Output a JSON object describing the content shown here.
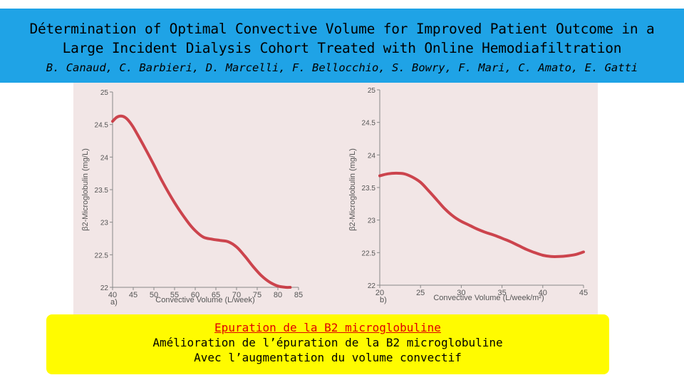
{
  "header": {
    "title_line1": "Détermination of Optimal Convective Volume for Improved Patient Outcome in a",
    "title_line2": "Large Incident Dialysis Cohort Treated with Online Hemodiafiltration",
    "authors": "B. Canaud, C. Barbieri, D. Marcelli, F. Bellocchio, S. Bowry, F. Mari, C. Amato, E. Gatti"
  },
  "caption": {
    "heading": "Epuration de la B2 microglobuline",
    "line1": "Amélioration de l’épuration de la B2 microglobuline",
    "line2": "Avec l’augmentation du volume convectif"
  },
  "colors": {
    "banner": "#1fa3e6",
    "caption_bg": "#fffb00",
    "curve": "#c8323c",
    "heading_red": "#e00000"
  },
  "chart_data": [
    {
      "type": "line",
      "panel": "a)",
      "xlabel": "Convective Volume (L/week)",
      "ylabel": "β2-Microglobulin (mg/L)",
      "xlim": [
        40,
        85
      ],
      "ylim": [
        22,
        25
      ],
      "xticks": [
        "40",
        "45",
        "50",
        "55",
        "60",
        "65",
        "70",
        "75",
        "80",
        "85"
      ],
      "yticks": [
        "22",
        "22.5",
        "23",
        "23.5",
        "24",
        "24.5",
        "25"
      ],
      "series": [
        {
          "x": [
            40,
            41,
            42,
            43,
            44,
            45,
            46,
            48,
            50,
            52,
            55,
            58,
            60,
            62,
            64,
            66,
            68,
            70,
            72,
            74,
            76,
            78,
            80,
            82,
            83
          ],
          "values": [
            24.55,
            24.61,
            24.63,
            24.61,
            24.55,
            24.46,
            24.35,
            24.12,
            23.88,
            23.63,
            23.3,
            23.02,
            22.87,
            22.77,
            22.74,
            22.72,
            22.7,
            22.62,
            22.48,
            22.32,
            22.18,
            22.08,
            22.02,
            22.0,
            22.0
          ]
        }
      ]
    },
    {
      "type": "line",
      "panel": "b)",
      "xlabel": "Convective Volume (L/week/m²)",
      "ylabel": "β2-Microglobulin (mg/L)",
      "xlim": [
        20,
        45
      ],
      "ylim": [
        22,
        25
      ],
      "xticks": [
        "20",
        "25",
        "30",
        "35",
        "40",
        "45"
      ],
      "yticks": [
        "22",
        "22.5",
        "23",
        "23.5",
        "24",
        "24.5",
        "25"
      ],
      "series": [
        {
          "x": [
            20,
            21,
            22,
            23,
            24,
            25,
            26,
            27,
            28,
            29,
            30,
            31,
            32,
            33,
            34,
            35,
            36,
            37,
            38,
            39,
            40,
            41,
            42,
            43,
            44,
            45
          ],
          "values": [
            23.68,
            23.71,
            23.72,
            23.71,
            23.66,
            23.58,
            23.45,
            23.31,
            23.17,
            23.06,
            22.98,
            22.92,
            22.86,
            22.81,
            22.77,
            22.72,
            22.67,
            22.61,
            22.55,
            22.5,
            22.46,
            22.44,
            22.44,
            22.45,
            22.47,
            22.51
          ]
        }
      ]
    }
  ]
}
